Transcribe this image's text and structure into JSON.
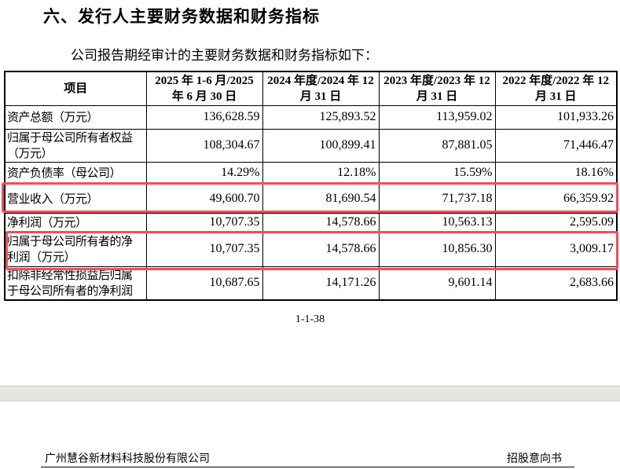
{
  "section_title": "六、发行人主要财务数据和财务指标",
  "intro": "公司报告期经审计的主要财务数据和财务指标如下：",
  "table": {
    "headers": [
      "项目",
      "2025 年 1-6 月/2025 年 6 月 30 日",
      "2024 年度/2024 年 12 月 31 日",
      "2023 年度/2023 年 12 月 31 日",
      "2022 年度/2022 年 12 月 31 日"
    ],
    "rows": [
      {
        "label": "资产总额（万元）",
        "values": [
          "136,628.59",
          "125,893.52",
          "113,959.02",
          "101,933.26"
        ]
      },
      {
        "label": "归属于母公司所有者权益（万元）",
        "values": [
          "108,304.67",
          "100,899.41",
          "87,881.05",
          "71,446.47"
        ]
      },
      {
        "label": "资产负债率（母公司）",
        "values": [
          "14.29%",
          "12.18%",
          "15.59%",
          "18.16%"
        ]
      },
      {
        "label": "营业收入（万元）",
        "values": [
          "49,600.70",
          "81,690.54",
          "71,737.18",
          "66,359.92"
        ]
      },
      {
        "label": "净利润（万元）",
        "values": [
          "10,707.35",
          "14,578.66",
          "10,563.13",
          "2,595.09"
        ]
      },
      {
        "label": "归属于母公司所有者的净利润（万元）",
        "values": [
          "10,707.35",
          "14,578.66",
          "10,856.30",
          "3,009.17"
        ]
      },
      {
        "label": "扣除非经常性损益后归属于母公司所有者的净利润",
        "values": [
          "10,687.65",
          "14,171.26",
          "9,601.14",
          "2,683.66"
        ]
      }
    ]
  },
  "highlight_color": "#f0505a",
  "page_number": "1-1-38",
  "footer": {
    "company": "广州慧谷新材料科技股份有限公司",
    "doc_type": "招股意向书"
  }
}
